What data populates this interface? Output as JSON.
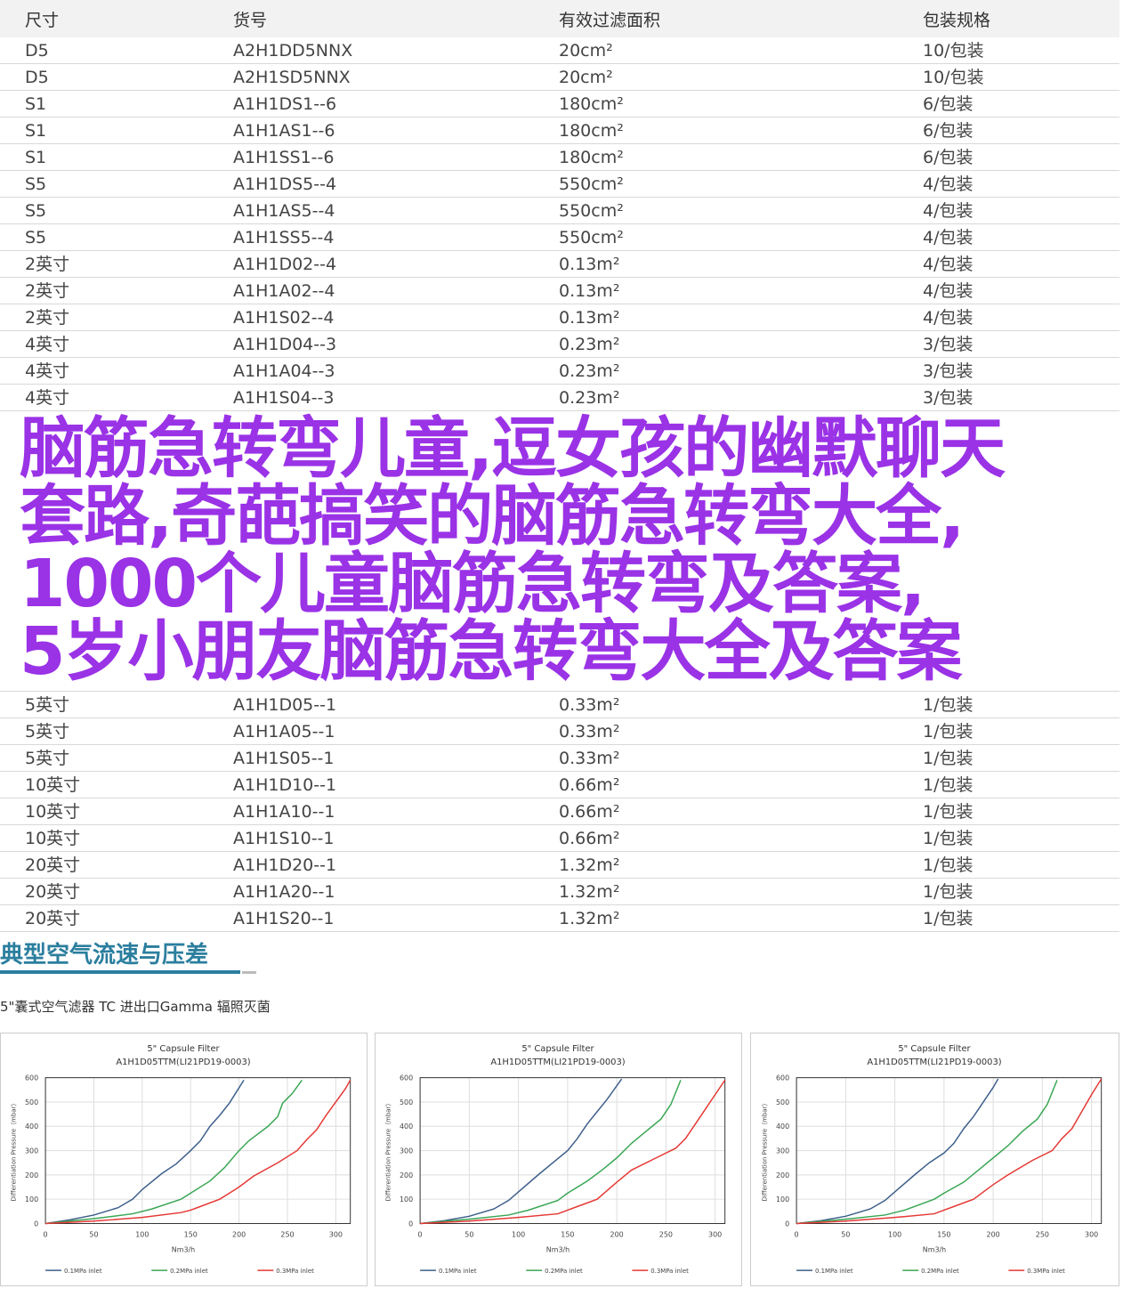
{
  "table": {
    "headers": [
      "尺寸",
      "货号",
      "有效过滤面积",
      "包装规格"
    ],
    "rows": [
      [
        "D5",
        "A2H1DD5NNX",
        "20cm²",
        "10/包装"
      ],
      [
        "D5",
        "A2H1SD5NNX",
        "20cm²",
        "10/包装"
      ],
      [
        "S1",
        "A1H1DS1--6",
        "180cm²",
        "6/包装"
      ],
      [
        "S1",
        "A1H1AS1--6",
        "180cm²",
        "6/包装"
      ],
      [
        "S1",
        "A1H1SS1--6",
        "180cm²",
        "6/包装"
      ],
      [
        "S5",
        "A1H1DS5--4",
        "550cm²",
        "4/包装"
      ],
      [
        "S5",
        "A1H1AS5--4",
        "550cm²",
        "4/包装"
      ],
      [
        "S5",
        "A1H1SS5--4",
        "550cm²",
        "4/包装"
      ],
      [
        "2英寸",
        "A1H1D02--4",
        "0.13m²",
        "4/包装"
      ],
      [
        "2英寸",
        "A1H1A02--4",
        "0.13m²",
        "4/包装"
      ],
      [
        "2英寸",
        "A1H1S02--4",
        "0.13m²",
        "4/包装"
      ],
      [
        "4英寸",
        "A1H1D04--3",
        "0.23m²",
        "3/包装"
      ],
      [
        "4英寸",
        "A1H1A04--3",
        "0.23m²",
        "3/包装"
      ],
      [
        "4英寸",
        "A1H1S04--3",
        "0.23m²",
        "3/包装"
      ],
      [
        "5英寸",
        "A1H1D05--1",
        "0.33m²",
        "1/包装"
      ],
      [
        "5英寸",
        "A1H1A05--1",
        "0.33m²",
        "1/包装"
      ],
      [
        "5英寸",
        "A1H1S05--1",
        "0.33m²",
        "1/包装"
      ],
      [
        "10英寸",
        "A1H1D10--1",
        "0.66m²",
        "1/包装"
      ],
      [
        "10英寸",
        "A1H1A10--1",
        "0.66m²",
        "1/包装"
      ],
      [
        "10英寸",
        "A1H1S10--1",
        "0.66m²",
        "1/包装"
      ],
      [
        "20英寸",
        "A1H1D20--1",
        "1.32m²",
        "1/包装"
      ],
      [
        "20英寸",
        "A1H1A20--1",
        "1.32m²",
        "1/包装"
      ],
      [
        "20英寸",
        "A1H1S20--1",
        "1.32m²",
        "1/包装"
      ]
    ]
  },
  "overlay": {
    "lines": [
      "脑筋急转弯儿童,逗女孩的幽默聊天",
      "套路,奇葩搞笑的脑筋急转弯大全,",
      "1000个儿童脑筋急转弯及答案,",
      " 5岁小朋友脑筋急转弯大全及答案"
    ],
    "color": "#9a32e6"
  },
  "section": {
    "title": "典型空气流速与压差",
    "subtitle": "5\"囊式空气滤器 TC 进出口Gamma 辐照灭菌",
    "accent": "#2b7e9e"
  },
  "chart_data": [
    {
      "type": "line",
      "title": "5\" Capsule Filter",
      "subtitle": "A1H1D05TTM(LI21PD19-0003)",
      "xlabel": "Nm3/h",
      "ylabel": "Differentiation Pressure（mbar）",
      "xlim": [
        0,
        315
      ],
      "ylim": [
        0,
        600
      ],
      "xticks": [
        0,
        50,
        100,
        150,
        200,
        250,
        300
      ],
      "yticks": [
        0,
        100,
        200,
        300,
        400,
        500,
        600
      ],
      "grid": true,
      "legend": "bottom",
      "series": [
        {
          "name": "0.1MPa inlet",
          "color": "#3e5f8a",
          "x": [
            0,
            25,
            50,
            75,
            90,
            100,
            120,
            135,
            150,
            160,
            170,
            180,
            190,
            205
          ],
          "y": [
            0,
            15,
            35,
            65,
            100,
            140,
            205,
            245,
            300,
            340,
            400,
            445,
            495,
            590
          ]
        },
        {
          "name": "0.2MPa inlet",
          "color": "#3aa655",
          "x": [
            0,
            50,
            90,
            110,
            140,
            150,
            170,
            185,
            200,
            210,
            230,
            240,
            245,
            255,
            265
          ],
          "y": [
            0,
            20,
            40,
            60,
            100,
            125,
            175,
            230,
            300,
            340,
            400,
            440,
            495,
            535,
            590
          ]
        },
        {
          "name": "0.3MPa inlet",
          "color": "#e53935",
          "x": [
            0,
            50,
            100,
            140,
            150,
            160,
            180,
            200,
            215,
            240,
            260,
            270,
            280,
            290,
            300,
            310,
            315
          ],
          "y": [
            0,
            10,
            25,
            45,
            55,
            70,
            100,
            150,
            195,
            250,
            300,
            345,
            385,
            445,
            500,
            555,
            590
          ]
        }
      ]
    },
    {
      "type": "line",
      "title": "5\" Capsule Filter",
      "subtitle": "A1H1D05TTM(LI21PD19-0003)",
      "xlabel": "Nm3/h",
      "ylabel": "Differentiation Pressure（mbar）",
      "xlim": [
        0,
        310
      ],
      "ylim": [
        0,
        600
      ],
      "xticks": [
        0,
        50,
        100,
        150,
        200,
        250,
        300
      ],
      "yticks": [
        0,
        100,
        200,
        300,
        400,
        500,
        600
      ],
      "grid": true,
      "legend": "bottom",
      "series": [
        {
          "name": "0.1MPa inlet",
          "color": "#3e5f8a",
          "x": [
            0,
            25,
            50,
            75,
            90,
            100,
            120,
            135,
            150,
            160,
            170,
            180,
            190,
            205
          ],
          "y": [
            0,
            12,
            30,
            60,
            95,
            130,
            200,
            250,
            300,
            350,
            410,
            460,
            510,
            595
          ]
        },
        {
          "name": "0.2MPa inlet",
          "color": "#3aa655",
          "x": [
            0,
            50,
            90,
            110,
            140,
            150,
            170,
            185,
            200,
            215,
            230,
            245,
            255,
            265
          ],
          "y": [
            0,
            18,
            35,
            55,
            95,
            125,
            175,
            220,
            270,
            330,
            380,
            430,
            490,
            590
          ]
        },
        {
          "name": "0.3MPa inlet",
          "color": "#e53935",
          "x": [
            0,
            50,
            100,
            140,
            150,
            160,
            180,
            200,
            215,
            240,
            260,
            270,
            280,
            290,
            300,
            310
          ],
          "y": [
            0,
            10,
            25,
            40,
            55,
            70,
            100,
            170,
            220,
            270,
            310,
            350,
            410,
            470,
            530,
            590
          ]
        }
      ]
    },
    {
      "type": "line",
      "title": "5\" Capsule Filter",
      "subtitle": "A1H1D05TTM(LI21PD19-0003)",
      "xlabel": "Nm3/h",
      "ylabel": "Differentiation Pressure（mbar）",
      "xlim": [
        0,
        310
      ],
      "ylim": [
        0,
        600
      ],
      "xticks": [
        0,
        50,
        100,
        150,
        200,
        250,
        300
      ],
      "yticks": [
        0,
        100,
        200,
        300,
        400,
        500,
        600
      ],
      "grid": true,
      "legend": "bottom",
      "series": [
        {
          "name": "0.1MPa inlet",
          "color": "#3e5f8a",
          "x": [
            0,
            25,
            50,
            75,
            90,
            100,
            120,
            135,
            150,
            160,
            170,
            180,
            190,
            200,
            205
          ],
          "y": [
            0,
            12,
            30,
            60,
            95,
            130,
            200,
            250,
            290,
            330,
            390,
            440,
            500,
            560,
            595
          ]
        },
        {
          "name": "0.2MPa inlet",
          "color": "#3aa655",
          "x": [
            0,
            50,
            90,
            110,
            140,
            150,
            170,
            185,
            200,
            215,
            230,
            245,
            255,
            265
          ],
          "y": [
            0,
            18,
            35,
            55,
            100,
            125,
            170,
            220,
            270,
            320,
            380,
            430,
            490,
            590
          ]
        },
        {
          "name": "0.3MPa inlet",
          "color": "#e53935",
          "x": [
            0,
            50,
            100,
            140,
            150,
            160,
            180,
            200,
            215,
            240,
            260,
            270,
            280,
            290,
            300,
            310
          ],
          "y": [
            0,
            10,
            25,
            40,
            55,
            70,
            100,
            160,
            200,
            260,
            300,
            350,
            390,
            460,
            530,
            595
          ]
        }
      ]
    }
  ]
}
